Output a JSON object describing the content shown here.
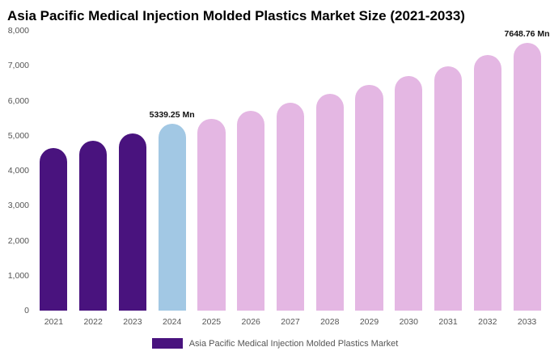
{
  "title": "Asia Pacific Medical Injection Molded Plastics Market Size (2021-2033)",
  "legend": {
    "label": "Asia Pacific Medical Injection Molded Plastics Market",
    "swatch_color": "#49137E"
  },
  "colors": {
    "historical": "#49137E",
    "highlight": "#A2C8E4",
    "forecast": "#E4B7E3"
  },
  "chart_data": {
    "type": "bar",
    "title": "Asia Pacific Medical Injection Molded Plastics Market Size (2021-2033)",
    "xlabel": "",
    "ylabel": "",
    "categories": [
      "2021",
      "2022",
      "2023",
      "2024",
      "2025",
      "2026",
      "2027",
      "2028",
      "2029",
      "2030",
      "2031",
      "2032",
      "2033"
    ],
    "values": [
      4650,
      4860,
      5060,
      5339.25,
      5480,
      5710,
      5950,
      6190,
      6440,
      6700,
      6980,
      7300,
      7648.76
    ],
    "bar_labels": {
      "2024": "5339.25 Mn",
      "2033": "7648.76 Mn"
    },
    "bar_colors": [
      "#49137E",
      "#49137E",
      "#49137E",
      "#A2C8E4",
      "#E4B7E3",
      "#E4B7E3",
      "#E4B7E3",
      "#E4B7E3",
      "#E4B7E3",
      "#E4B7E3",
      "#E4B7E3",
      "#E4B7E3",
      "#E4B7E3"
    ],
    "ylim": [
      0,
      8000
    ],
    "y_ticks": [
      "0",
      "1,000",
      "2,000",
      "3,000",
      "4,000",
      "5,000",
      "6,000",
      "7,000",
      "8,000"
    ],
    "grid": false,
    "legend_position": "bottom"
  }
}
